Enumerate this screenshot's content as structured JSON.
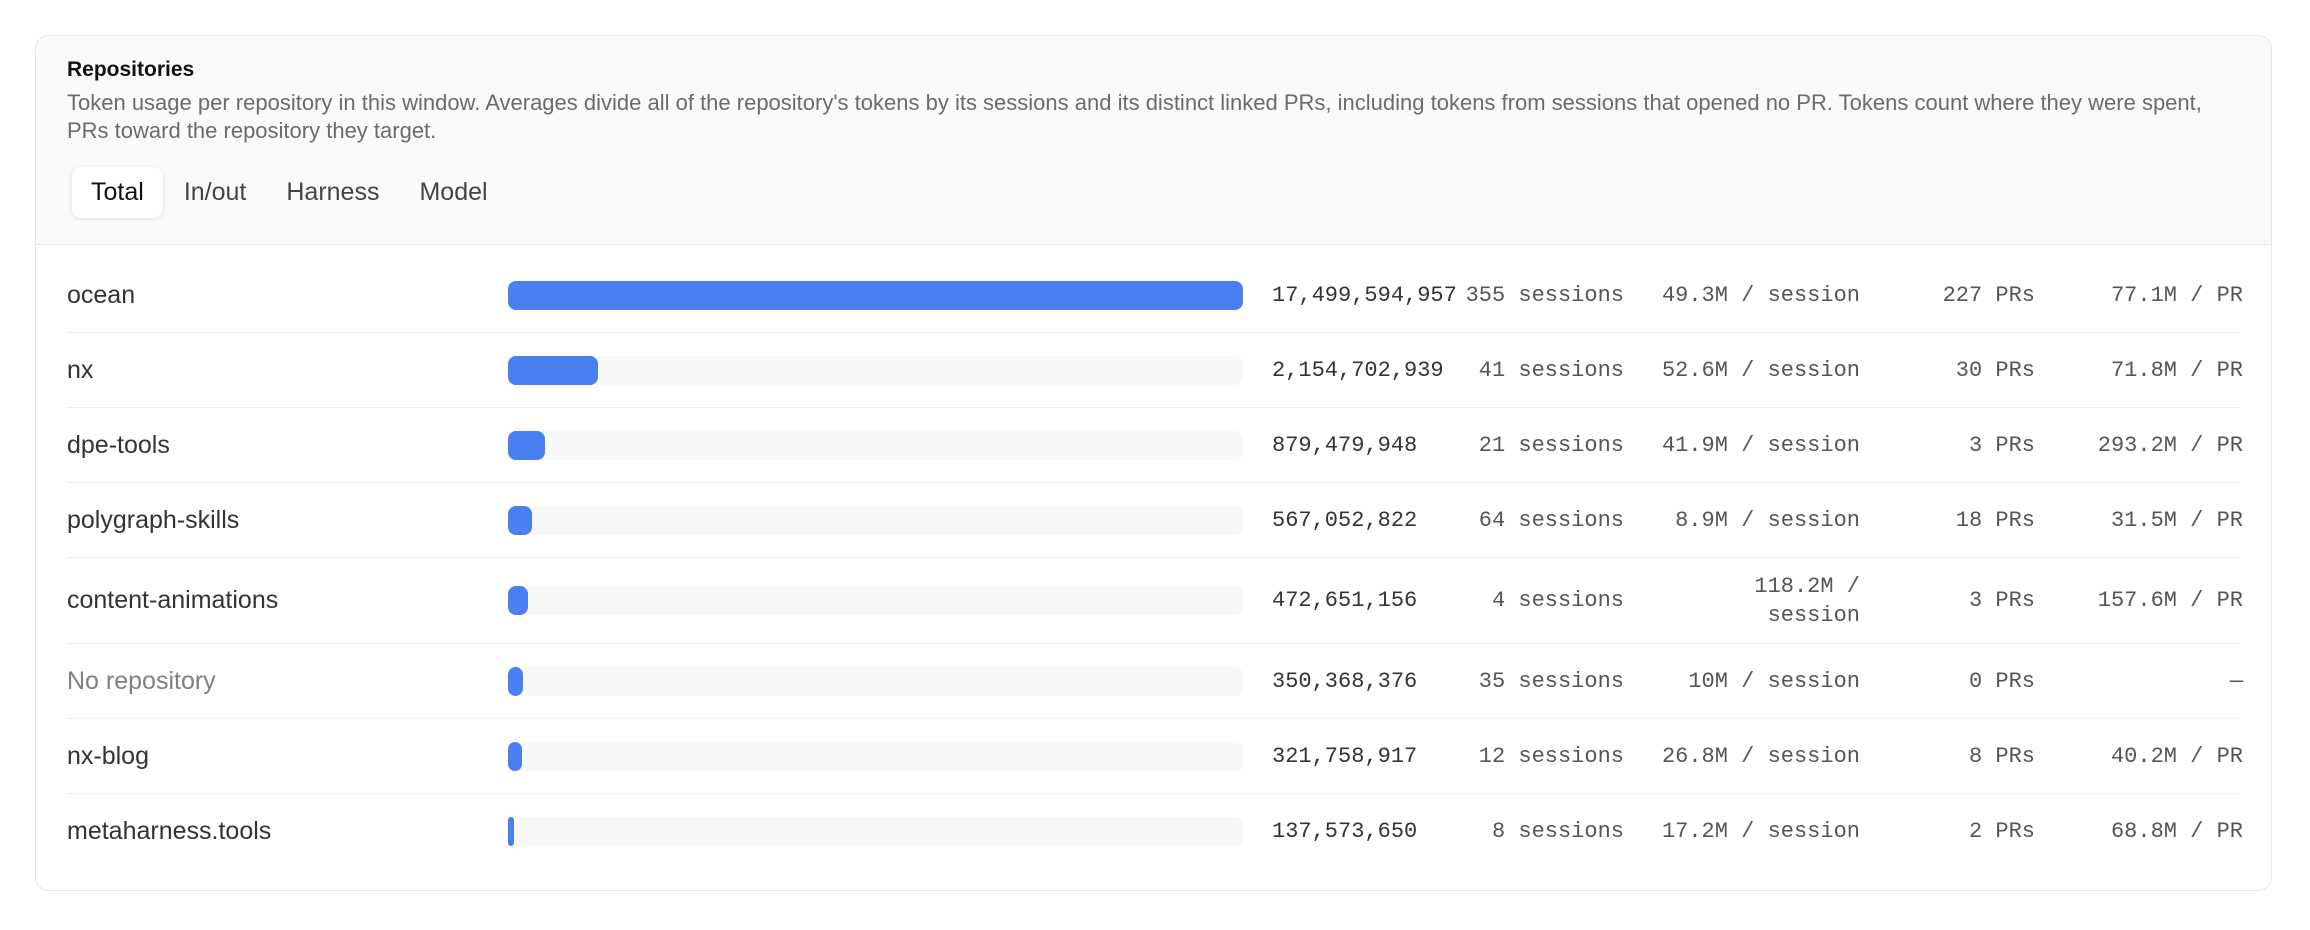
{
  "header": {
    "title": "Repositories",
    "description": "Token usage per repository in this window. Averages divide all of the repository's tokens by its sessions and its distinct linked PRs, including tokens from sessions that opened no PR. Tokens count where they were spent, PRs toward the repository they target."
  },
  "tabs": {
    "items": [
      "Total",
      "In/out",
      "Harness",
      "Model"
    ],
    "active": 0
  },
  "table": {
    "rows": [
      {
        "name": "ocean",
        "tokens": {
          "value": 17499594957,
          "label": "17,499,594,957"
        },
        "sessions": "355 sessions",
        "per_session": "49.3M / session",
        "prs": "227 PRs",
        "per_pr": "77.1M / PR"
      },
      {
        "name": "nx",
        "tokens": {
          "value": 2154702939,
          "label": "2,154,702,939"
        },
        "sessions": "41 sessions",
        "per_session": "52.6M / session",
        "prs": "30 PRs",
        "per_pr": "71.8M / PR"
      },
      {
        "name": "dpe-tools",
        "tokens": {
          "value": 879479948,
          "label": "879,479,948"
        },
        "sessions": "21 sessions",
        "per_session": "41.9M / session",
        "prs": "3 PRs",
        "per_pr": "293.2M / PR"
      },
      {
        "name": "polygraph-skills",
        "tokens": {
          "value": 567052822,
          "label": "567,052,822"
        },
        "sessions": "64 sessions",
        "per_session": "8.9M / session",
        "prs": "18 PRs",
        "per_pr": "31.5M / PR"
      },
      {
        "name": "content-animations",
        "tokens": {
          "value": 472651156,
          "label": "472,651,156"
        },
        "sessions": "4 sessions",
        "per_session": "118.2M / session",
        "prs": "3 PRs",
        "per_pr": "157.6M / PR"
      },
      {
        "name": "No repository",
        "tokens": {
          "value": 350368376,
          "label": "350,368,376"
        },
        "sessions": "35 sessions",
        "per_session": "10M / session",
        "prs": "0 PRs",
        "per_pr": "—"
      },
      {
        "name": "nx-blog",
        "tokens": {
          "value": 321758917,
          "label": "321,758,917"
        },
        "sessions": "12 sessions",
        "per_session": "26.8M / session",
        "prs": "8 PRs",
        "per_pr": "40.2M / PR"
      },
      {
        "name": "metaharness.tools",
        "tokens": {
          "value": 137573650,
          "label": "137,573,650"
        },
        "sessions": "8 sessions",
        "per_session": "17.2M / session",
        "prs": "2 PRs",
        "per_pr": "68.8M / PR"
      }
    ]
  }
}
